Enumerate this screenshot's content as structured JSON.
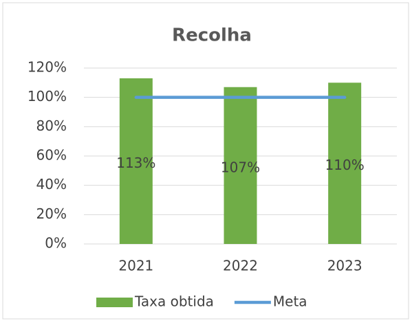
{
  "chart_data": {
    "type": "bar",
    "title": "Recolha",
    "categories": [
      "2021",
      "2022",
      "2023"
    ],
    "series": [
      {
        "name": "Taxa obtida",
        "type": "bar",
        "color": "#70ad47",
        "values": [
          113,
          107,
          110
        ],
        "value_labels": [
          "113%",
          "107%",
          "110%"
        ]
      },
      {
        "name": "Meta",
        "type": "line",
        "color": "#5b9bd5",
        "values": [
          100,
          100,
          100
        ]
      }
    ],
    "ylim": [
      0,
      120
    ],
    "yticks": [
      {
        "value": 0,
        "label": "0%"
      },
      {
        "value": 20,
        "label": "20%"
      },
      {
        "value": 40,
        "label": "40%"
      },
      {
        "value": 60,
        "label": "60%"
      },
      {
        "value": 80,
        "label": "80%"
      },
      {
        "value": 100,
        "label": "100%"
      },
      {
        "value": 120,
        "label": "120%"
      }
    ],
    "grid": true,
    "legend": "bottom"
  }
}
